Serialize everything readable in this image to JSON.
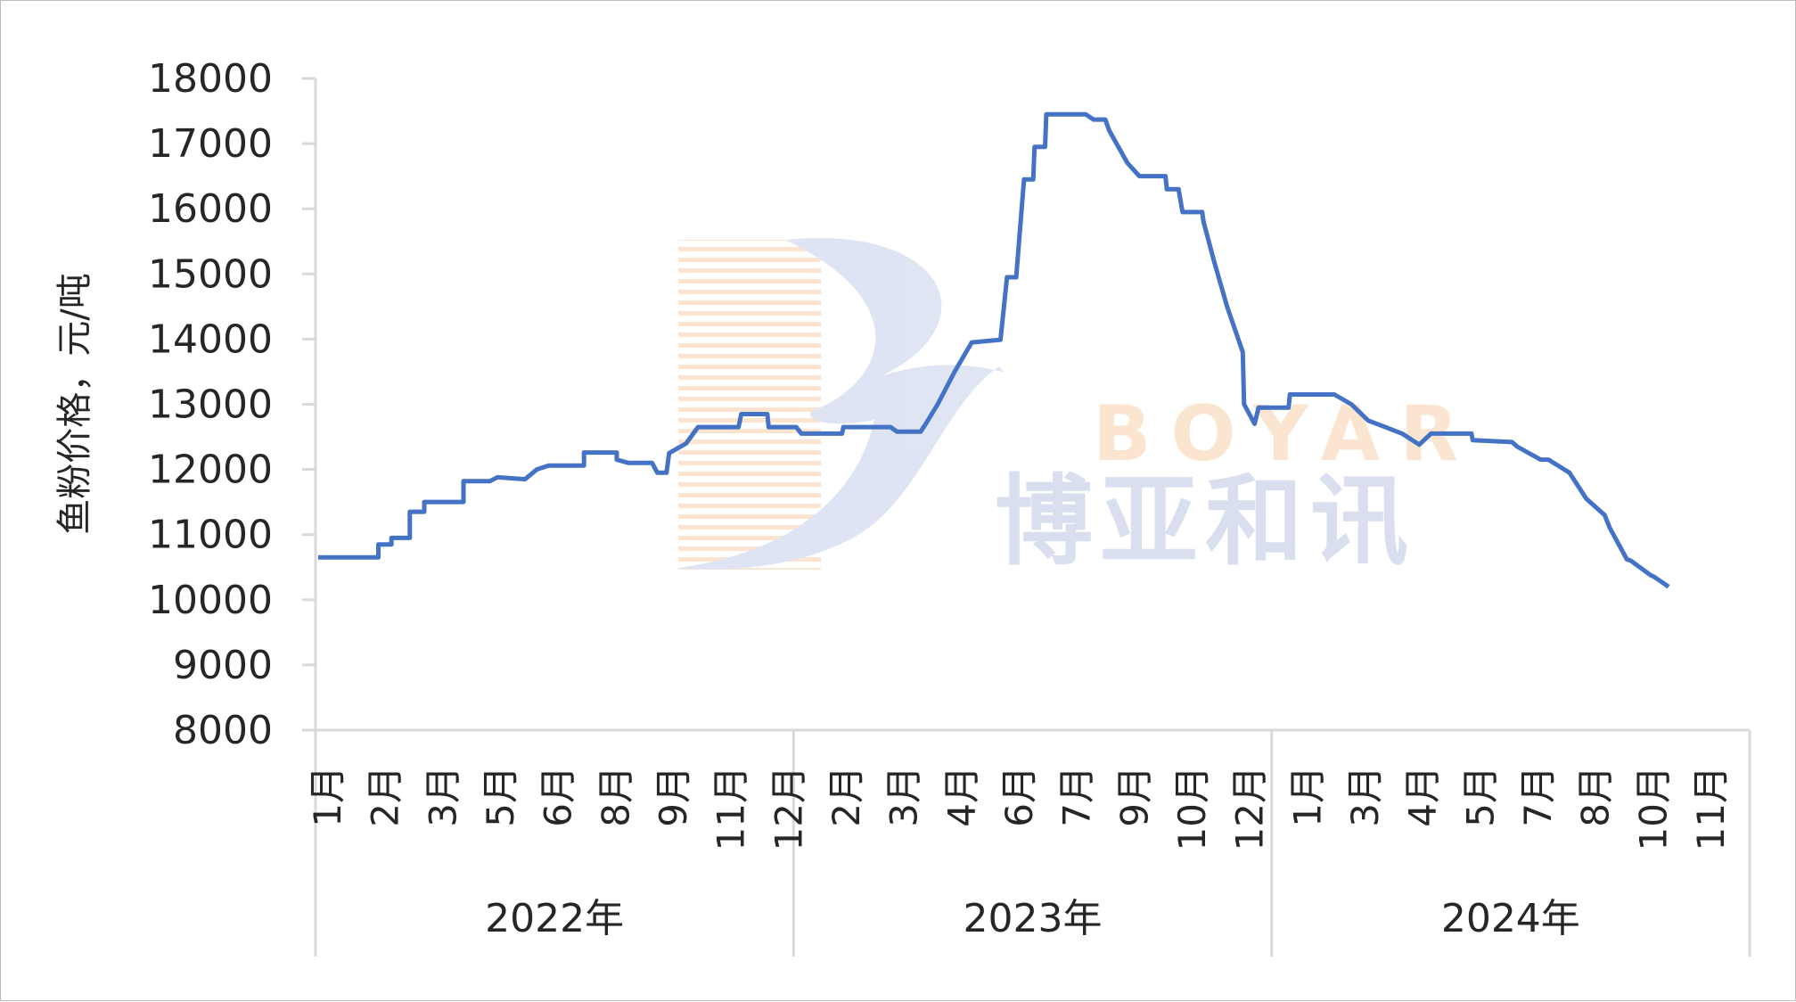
{
  "chart_data": {
    "type": "line",
    "title": "",
    "ylabel": "鱼粉价格，元/吨",
    "xlabel": "",
    "ylim": [
      8000,
      18000
    ],
    "yticks": [
      8000,
      9000,
      10000,
      11000,
      12000,
      13000,
      14000,
      15000,
      16000,
      17000,
      18000
    ],
    "grid": false,
    "legend": "none",
    "line_color": "#4472C4",
    "x_groups": [
      {
        "label": "2022年",
        "months": [
          "1月",
          "2月",
          "3月",
          "5月",
          "6月",
          "8月",
          "9月",
          "11月",
          "12月"
        ]
      },
      {
        "label": "2023年",
        "months": [
          "2月",
          "3月",
          "4月",
          "6月",
          "7月",
          "9月",
          "10月",
          "12月"
        ]
      },
      {
        "label": "2024年",
        "months": [
          "1月",
          "3月",
          "4月",
          "5月",
          "7月",
          "8月",
          "10月",
          "11月"
        ]
      }
    ],
    "series": [
      {
        "points": [
          [
            "2022-01-03",
            10650
          ],
          [
            "2022-02-18",
            10650
          ],
          [
            "2022-02-18",
            10850
          ],
          [
            "2022-02-28",
            10850
          ],
          [
            "2022-02-28",
            10950
          ],
          [
            "2022-03-14",
            10950
          ],
          [
            "2022-03-14",
            11350
          ],
          [
            "2022-03-25",
            11350
          ],
          [
            "2022-03-25",
            11500
          ],
          [
            "2022-04-24",
            11500
          ],
          [
            "2022-04-24",
            11820
          ],
          [
            "2022-05-14",
            11820
          ],
          [
            "2022-05-20",
            11880
          ],
          [
            "2022-06-10",
            11850
          ],
          [
            "2022-06-19",
            12000
          ],
          [
            "2022-06-28",
            12060
          ],
          [
            "2022-07-25",
            12060
          ],
          [
            "2022-07-25",
            12260
          ],
          [
            "2022-08-19",
            12260
          ],
          [
            "2022-08-19",
            12150
          ],
          [
            "2022-08-28",
            12100
          ],
          [
            "2022-09-15",
            12100
          ],
          [
            "2022-09-19",
            11950
          ],
          [
            "2022-09-26",
            11950
          ],
          [
            "2022-09-28",
            12250
          ],
          [
            "2022-10-11",
            12400
          ],
          [
            "2022-10-20",
            12650
          ],
          [
            "2022-11-20",
            12650
          ],
          [
            "2022-11-22",
            12850
          ],
          [
            "2022-12-12",
            12850
          ],
          [
            "2022-12-13",
            12650
          ],
          [
            "2023-01-03",
            12650
          ],
          [
            "2023-01-07",
            12550
          ],
          [
            "2023-02-07",
            12550
          ],
          [
            "2023-02-08",
            12650
          ],
          [
            "2023-03-16",
            12650
          ],
          [
            "2023-03-21",
            12580
          ],
          [
            "2023-04-08",
            12580
          ],
          [
            "2023-04-12",
            12700
          ],
          [
            "2023-04-21",
            13000
          ],
          [
            "2023-05-04",
            13500
          ],
          [
            "2023-05-17",
            13950
          ],
          [
            "2023-06-08",
            13990
          ],
          [
            "2023-06-13",
            14950
          ],
          [
            "2023-06-20",
            14950
          ],
          [
            "2023-06-26",
            16450
          ],
          [
            "2023-07-03",
            16450
          ],
          [
            "2023-07-04",
            16950
          ],
          [
            "2023-07-12",
            16950
          ],
          [
            "2023-07-13",
            17450
          ],
          [
            "2023-08-12",
            17450
          ],
          [
            "2023-08-18",
            17370
          ],
          [
            "2023-08-27",
            17370
          ],
          [
            "2023-08-30",
            17200
          ],
          [
            "2023-09-13",
            16700
          ],
          [
            "2023-09-22",
            16500
          ],
          [
            "2023-10-12",
            16500
          ],
          [
            "2023-10-13",
            16300
          ],
          [
            "2023-10-22",
            16300
          ],
          [
            "2023-10-25",
            15950
          ],
          [
            "2023-11-09",
            15950
          ],
          [
            "2023-11-10",
            15800
          ],
          [
            "2023-11-18",
            15200
          ],
          [
            "2023-11-28",
            14500
          ],
          [
            "2023-12-10",
            13800
          ],
          [
            "2023-12-11",
            13000
          ],
          [
            "2023-12-19",
            12700
          ],
          [
            "2023-12-22",
            12950
          ],
          [
            "2024-01-14",
            12950
          ],
          [
            "2024-01-15",
            13150
          ],
          [
            "2024-02-18",
            13150
          ],
          [
            "2024-03-02",
            13000
          ],
          [
            "2024-03-15",
            12750
          ],
          [
            "2024-03-28",
            12650
          ],
          [
            "2024-04-10",
            12550
          ],
          [
            "2024-04-23",
            12380
          ],
          [
            "2024-05-02",
            12550
          ],
          [
            "2024-06-02",
            12550
          ],
          [
            "2024-06-03",
            12450
          ],
          [
            "2024-07-03",
            12420
          ],
          [
            "2024-07-07",
            12350
          ],
          [
            "2024-07-25",
            12150
          ],
          [
            "2024-07-31",
            12150
          ],
          [
            "2024-08-16",
            11950
          ],
          [
            "2024-08-29",
            11550
          ],
          [
            "2024-09-12",
            11300
          ],
          [
            "2024-09-16",
            11100
          ],
          [
            "2024-09-29",
            10620
          ],
          [
            "2024-10-02",
            10600
          ],
          [
            "2024-10-17",
            10380
          ],
          [
            "2024-10-20",
            10350
          ],
          [
            "2024-10-31",
            10200
          ]
        ]
      }
    ]
  },
  "watermark": {
    "logo_text_en": "BOYAR",
    "logo_text_cn": "博亚和讯"
  }
}
